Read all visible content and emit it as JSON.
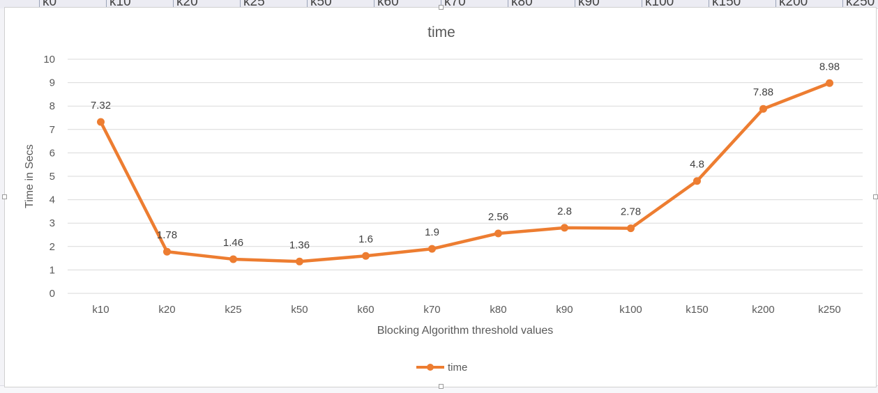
{
  "spreadsheet": {
    "header_cells": [
      "k0",
      "k10",
      "k20",
      "k25",
      "k50",
      "k60",
      "k70",
      "k80",
      "k90",
      "k100",
      "k150",
      "k200",
      "k250"
    ]
  },
  "colors": {
    "series": "#ED7D31",
    "grid": "#D9D9D9",
    "axis_text": "#595959",
    "title_text": "#595959"
  },
  "chart_data": {
    "type": "line",
    "title": "time",
    "xlabel": "Blocking Algorithm threshold values",
    "ylabel": "Time in Secs",
    "categories": [
      "k10",
      "k20",
      "k25",
      "k50",
      "k60",
      "k70",
      "k80",
      "k90",
      "k100",
      "k150",
      "k200",
      "k250"
    ],
    "series": [
      {
        "name": "time",
        "values": [
          7.32,
          1.78,
          1.46,
          1.36,
          1.6,
          1.9,
          2.56,
          2.8,
          2.78,
          4.8,
          7.88,
          8.98
        ],
        "data_labels": [
          "7.32",
          "1.78",
          "1.46",
          "1.36",
          "1.6",
          "1.9",
          "2.56",
          "2.8",
          "2.78",
          "4.8",
          "7.88",
          "8.98"
        ]
      }
    ],
    "ylim": [
      0,
      10
    ],
    "yticks": [
      0,
      1,
      2,
      3,
      4,
      5,
      6,
      7,
      8,
      9,
      10
    ],
    "grid": true,
    "legend_position": "bottom",
    "marker": "circle"
  }
}
